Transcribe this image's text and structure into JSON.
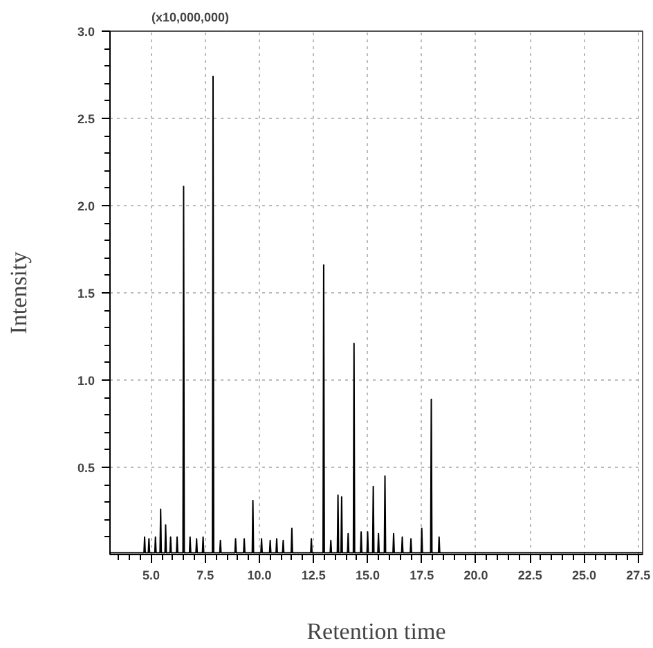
{
  "chart_data": {
    "type": "line",
    "xlabel": "Retention time",
    "ylabel": "Intensity",
    "annotations": [
      "(x10,000,000)"
    ],
    "x": [
      3.1,
      4.67,
      4.7,
      4.73,
      4.87,
      4.9,
      4.93,
      5.17,
      5.2,
      5.23,
      5.41,
      5.44,
      5.47,
      5.64,
      5.67,
      5.7,
      5.87,
      5.9,
      5.93,
      6.17,
      6.2,
      6.23,
      6.47,
      6.5,
      6.53,
      6.77,
      6.8,
      6.83,
      7.07,
      7.1,
      7.13,
      7.37,
      7.4,
      7.43,
      7.83,
      7.86,
      7.89,
      8.17,
      8.2,
      8.23,
      8.87,
      8.9,
      8.93,
      9.27,
      9.3,
      9.33,
      9.67,
      9.7,
      9.73,
      10.07,
      10.1,
      10.13,
      10.47,
      10.5,
      10.53,
      10.77,
      10.8,
      10.83,
      11.07,
      11.1,
      11.13,
      11.47,
      11.5,
      11.53,
      12.37,
      12.4,
      12.43,
      12.94,
      12.97,
      13.0,
      13.27,
      13.3,
      13.33,
      13.6,
      13.63,
      13.66,
      13.77,
      13.8,
      13.83,
      14.07,
      14.1,
      14.13,
      14.34,
      14.37,
      14.4,
      14.67,
      14.7,
      14.73,
      14.97,
      15.0,
      15.03,
      15.23,
      15.26,
      15.29,
      15.47,
      15.5,
      15.53,
      15.77,
      15.8,
      15.83,
      16.17,
      16.2,
      16.23,
      16.57,
      16.6,
      16.63,
      16.97,
      17.0,
      17.03,
      17.47,
      17.5,
      17.53,
      17.91,
      17.94,
      17.97,
      18.27,
      18.3,
      18.33,
      27.7
    ],
    "series": [
      {
        "color": "#000000",
        "values": [
          0.01,
          0.01,
          0.1,
          0.01,
          0.01,
          0.09,
          0.01,
          0.01,
          0.1,
          0.01,
          0.01,
          0.26,
          0.01,
          0.01,
          0.17,
          0.01,
          0.01,
          0.1,
          0.01,
          0.01,
          0.1,
          0.01,
          0.01,
          2.11,
          0.01,
          0.01,
          0.1,
          0.01,
          0.01,
          0.09,
          0.01,
          0.01,
          0.1,
          0.01,
          0.01,
          2.74,
          0.01,
          0.01,
          0.08,
          0.01,
          0.01,
          0.09,
          0.01,
          0.01,
          0.09,
          0.01,
          0.01,
          0.31,
          0.01,
          0.01,
          0.09,
          0.01,
          0.01,
          0.08,
          0.01,
          0.01,
          0.09,
          0.01,
          0.01,
          0.08,
          0.01,
          0.01,
          0.15,
          0.01,
          0.01,
          0.09,
          0.01,
          0.01,
          1.66,
          0.01,
          0.01,
          0.08,
          0.01,
          0.01,
          0.34,
          0.01,
          0.01,
          0.33,
          0.01,
          0.01,
          0.12,
          0.01,
          0.01,
          1.21,
          0.01,
          0.01,
          0.13,
          0.01,
          0.01,
          0.13,
          0.01,
          0.01,
          0.39,
          0.01,
          0.01,
          0.12,
          0.01,
          0.01,
          0.45,
          0.01,
          0.01,
          0.12,
          0.01,
          0.01,
          0.1,
          0.01,
          0.01,
          0.09,
          0.01,
          0.01,
          0.15,
          0.01,
          0.01,
          0.89,
          0.01,
          0.01,
          0.1,
          0.01,
          0.01
        ]
      }
    ],
    "xlim": [
      3.1,
      27.7
    ],
    "ylim": [
      0,
      3.0
    ],
    "xticks": [
      {
        "value": 5,
        "label": "5.0"
      },
      {
        "value": 7.5,
        "label": "7.5"
      },
      {
        "value": 10,
        "label": "10.0"
      },
      {
        "value": 12.5,
        "label": "12.5"
      },
      {
        "value": 15,
        "label": "15.0"
      },
      {
        "value": 17.5,
        "label": "17.5"
      },
      {
        "value": 20,
        "label": "20.0"
      },
      {
        "value": 22.5,
        "label": "22.5"
      },
      {
        "value": 25,
        "label": "25.0"
      },
      {
        "value": 27.5,
        "label": "27.5"
      }
    ],
    "yticks": [
      {
        "value": 0.5,
        "label": "0.5"
      },
      {
        "value": 1.0,
        "label": "1.0"
      },
      {
        "value": 1.5,
        "label": "1.5"
      },
      {
        "value": 2.0,
        "label": "2.0"
      },
      {
        "value": 2.5,
        "label": "2.5"
      },
      {
        "value": 3.0,
        "label": "3.0"
      }
    ],
    "grid": true,
    "marker": "none",
    "line_style": "solid"
  }
}
